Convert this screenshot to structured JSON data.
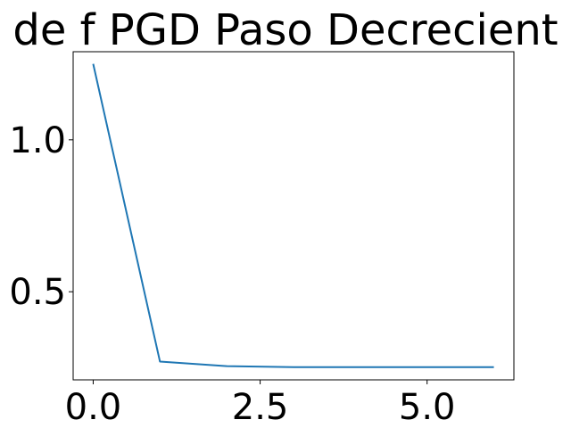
{
  "chart_data": {
    "type": "line",
    "title": "de f PGD Paso Decrecient",
    "xlabel": "",
    "ylabel": "",
    "xlim": [
      -0.3,
      6.3
    ],
    "ylim": [
      0.21,
      1.29
    ],
    "grid": false,
    "x_ticks": [
      0.0,
      2.5,
      5.0
    ],
    "x_tick_labels": [
      "0.0",
      "2.5",
      "5.0"
    ],
    "y_ticks": [
      0.5,
      1.0
    ],
    "y_tick_labels": [
      "0.5",
      "1.0"
    ],
    "line_color": "#1f77b4",
    "series": [
      {
        "x": [
          0,
          1,
          2,
          3,
          4,
          5,
          6
        ],
        "values": [
          1.25,
          0.27,
          0.255,
          0.252,
          0.252,
          0.252,
          0.252
        ]
      }
    ]
  }
}
